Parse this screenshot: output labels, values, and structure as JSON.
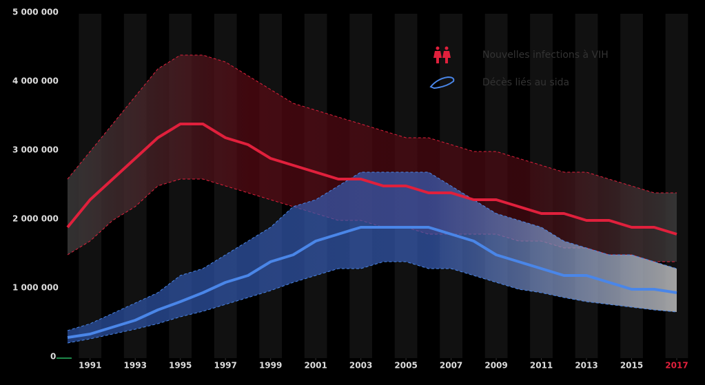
{
  "chart_data": {
    "type": "band-line",
    "x": [
      1990,
      1991,
      1992,
      1993,
      1994,
      1995,
      1996,
      1997,
      1998,
      1999,
      2000,
      2001,
      2002,
      2003,
      2004,
      2005,
      2006,
      2007,
      2008,
      2009,
      2010,
      2011,
      2012,
      2013,
      2014,
      2015,
      2016,
      2017
    ],
    "xlim": [
      1990,
      2017
    ],
    "xticks": [
      1991,
      1993,
      1995,
      1997,
      1999,
      2001,
      2003,
      2005,
      2007,
      2009,
      2011,
      2013,
      2015,
      2017
    ],
    "xtick_highlight_color": "#e0203c",
    "ylim": [
      0,
      5000000
    ],
    "yticks": [
      0,
      {
        "value": 1000000,
        "label": "1 000 000"
      },
      {
        "value": 2000000,
        "label": "2 000 000"
      },
      {
        "value": 3000000,
        "label": "3 000 000"
      },
      {
        "value": 4000000,
        "label": "4 000 000"
      },
      {
        "value": 5000000,
        "label": "5 000 000"
      }
    ],
    "series": [
      {
        "name": "Nouvelles infections à VIH",
        "color": "#e0203c",
        "values": [
          1900000,
          2300000,
          2600000,
          2900000,
          3200000,
          3400000,
          3400000,
          3200000,
          3100000,
          2900000,
          2800000,
          2700000,
          2600000,
          2600000,
          2500000,
          2500000,
          2400000,
          2400000,
          2300000,
          2300000,
          2200000,
          2100000,
          2100000,
          2000000,
          2000000,
          1900000,
          1900000,
          1800000
        ],
        "upper": [
          2600000,
          3000000,
          3400000,
          3800000,
          4200000,
          4400000,
          4400000,
          4300000,
          4100000,
          3900000,
          3700000,
          3600000,
          3500000,
          3400000,
          3300000,
          3200000,
          3200000,
          3100000,
          3000000,
          3000000,
          2900000,
          2800000,
          2700000,
          2700000,
          2600000,
          2500000,
          2400000,
          2400000
        ],
        "lower": [
          1500000,
          1700000,
          2000000,
          2200000,
          2500000,
          2600000,
          2600000,
          2500000,
          2400000,
          2300000,
          2200000,
          2100000,
          2000000,
          2000000,
          1900000,
          1900000,
          1800000,
          1800000,
          1800000,
          1800000,
          1700000,
          1700000,
          1600000,
          1600000,
          1500000,
          1500000,
          1400000,
          1400000
        ]
      },
      {
        "name": "Décès liés au sida",
        "color": "#4a86e8",
        "values": [
          300000,
          350000,
          450000,
          550000,
          700000,
          820000,
          950000,
          1100000,
          1200000,
          1400000,
          1500000,
          1700000,
          1800000,
          1900000,
          1900000,
          1900000,
          1900000,
          1800000,
          1700000,
          1500000,
          1400000,
          1300000,
          1200000,
          1200000,
          1100000,
          1000000,
          1000000,
          950000
        ],
        "upper": [
          400000,
          500000,
          650000,
          800000,
          950000,
          1200000,
          1300000,
          1500000,
          1700000,
          1900000,
          2200000,
          2300000,
          2500000,
          2700000,
          2700000,
          2700000,
          2700000,
          2500000,
          2300000,
          2100000,
          2000000,
          1900000,
          1700000,
          1600000,
          1500000,
          1500000,
          1400000,
          1300000
        ],
        "lower": [
          220000,
          280000,
          350000,
          420000,
          500000,
          600000,
          680000,
          780000,
          880000,
          980000,
          1100000,
          1200000,
          1300000,
          1300000,
          1400000,
          1400000,
          1300000,
          1300000,
          1200000,
          1100000,
          1000000,
          950000,
          880000,
          820000,
          780000,
          740000,
          700000,
          670000
        ]
      }
    ]
  }
}
